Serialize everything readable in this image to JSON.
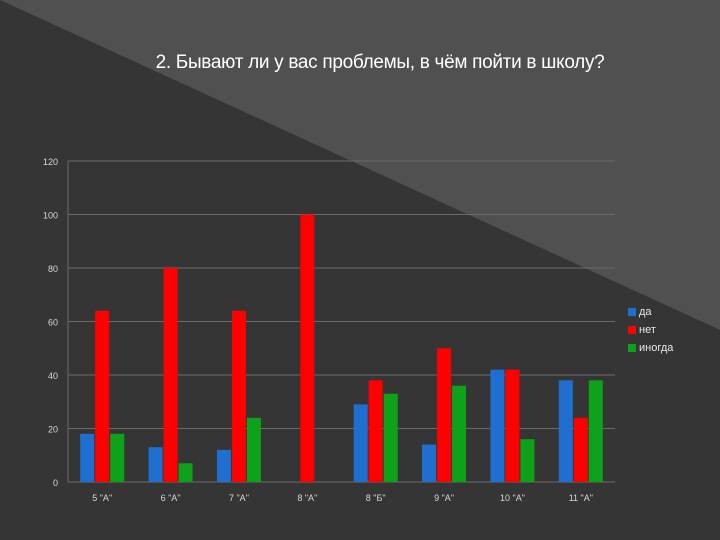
{
  "chart_data": {
    "type": "bar",
    "title": "2.  Бывают ли у вас проблемы, в чём пойти в школу?",
    "xlabel": "",
    "ylabel": "",
    "categories": [
      "5 \"А\"",
      "6 \"А\"",
      "7 \"А\"",
      "8 \"А\"",
      "8 \"Б\"",
      "9 \"А\"",
      "10 \"А\"",
      "11 \"А\""
    ],
    "series": [
      {
        "name": "да",
        "color": "#1f6fd1",
        "values": [
          18,
          13,
          12,
          0,
          29,
          14,
          42,
          38
        ]
      },
      {
        "name": "нет",
        "color": "#ff0000",
        "values": [
          64,
          80,
          64,
          100,
          38,
          50,
          42,
          24
        ]
      },
      {
        "name": "иногда",
        "color": "#0ea11a",
        "values": [
          18,
          7,
          24,
          0,
          33,
          36,
          16,
          38
        ]
      }
    ],
    "ylim": [
      0,
      120
    ],
    "yticks": [
      0,
      20,
      40,
      60,
      80,
      100,
      120
    ],
    "grid": true,
    "legend": "right"
  }
}
